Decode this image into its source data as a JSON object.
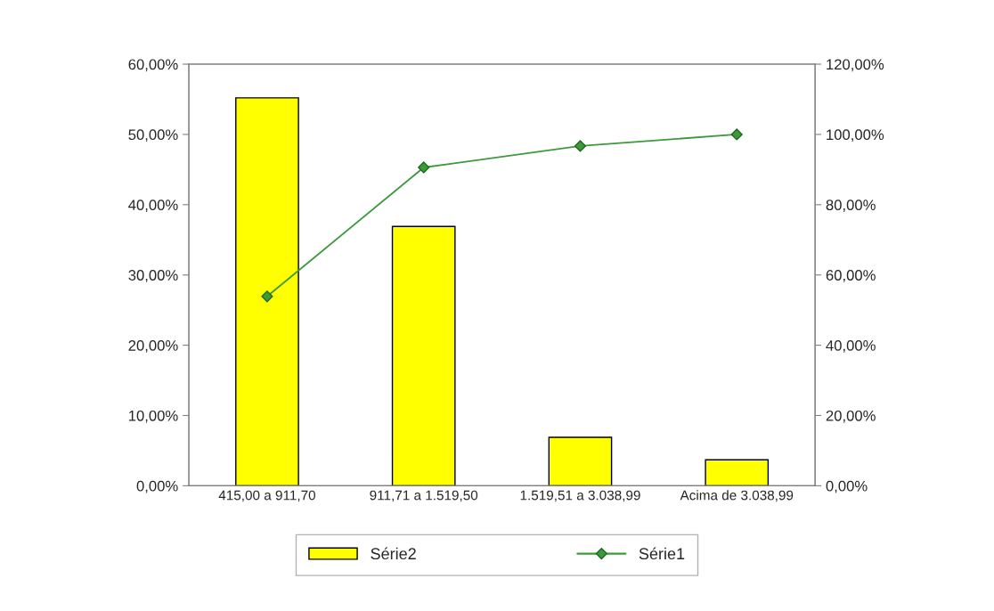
{
  "chart_data": {
    "type": "bar",
    "categories": [
      "415,00 a 911,70",
      "911,71 a 1.519,50",
      "1.519,51 a 3.038,99",
      "Acima de 3.038,99"
    ],
    "series": [
      {
        "name": "Série2",
        "color": "#ffff00",
        "values": [
          55.2,
          36.9,
          6.9,
          3.7
        ]
      },
      {
        "name": "Série1",
        "type": "line",
        "axis": "y2",
        "color": "#3c9a3c",
        "values": [
          53.9,
          90.6,
          96.7,
          100
        ]
      }
    ],
    "ylim": [
      0,
      60
    ],
    "yticks": [
      {
        "value": 0,
        "label": "0,00%"
      },
      {
        "value": 10,
        "label": "10,00%"
      },
      {
        "value": 20,
        "label": "20,00%"
      },
      {
        "value": 30,
        "label": "30,00%"
      },
      {
        "value": 40,
        "label": "40,00%"
      },
      {
        "value": 50,
        "label": "50,00%"
      },
      {
        "value": 60,
        "label": "60,00%"
      }
    ],
    "y2lim": [
      0,
      120
    ],
    "y2ticks": [
      {
        "value": 0,
        "label": "0,00%"
      },
      {
        "value": 20,
        "label": "20,00%"
      },
      {
        "value": 40,
        "label": "40,00%"
      },
      {
        "value": 60,
        "label": "60,00%"
      },
      {
        "value": 80,
        "label": "80,00%"
      },
      {
        "value": 100,
        "label": "100,00%"
      },
      {
        "value": 120,
        "label": "120,00%"
      }
    ],
    "marker": "diamond",
    "grid": false,
    "legend": "bottom"
  }
}
